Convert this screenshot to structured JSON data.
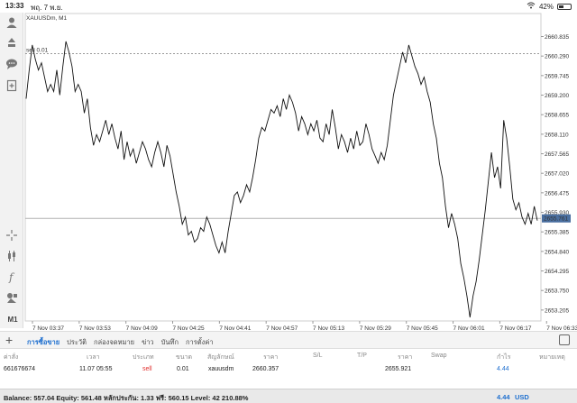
{
  "status_bar": {
    "time": "13:33",
    "date": "พฤ. 7 พ.ย.",
    "battery": "42%",
    "battery_level": 0.42
  },
  "chart": {
    "symbol_title": "XAUUSDm, M1",
    "sell_label": "sell 0.01",
    "current_price": "2655.761",
    "sell_level": 2660.357,
    "colors": {
      "line": "#111111",
      "grid": "#e6e6e6",
      "price_box": "#4a6fa0",
      "sell_line": "#999999"
    },
    "price_axis": [
      "2660.835",
      "2660.290",
      "2659.745",
      "2659.200",
      "2658.655",
      "2658.110",
      "2657.565",
      "2657.020",
      "2656.475",
      "2655.930",
      "2655.385",
      "2654.840",
      "2654.295",
      "2653.750",
      "2653.205"
    ],
    "time_axis": [
      "7 Nov 03:37",
      "7 Nov 03:53",
      "7 Nov 04:09",
      "7 Nov 04:25",
      "7 Nov 04:41",
      "7 Nov 04:57",
      "7 Nov 05:13",
      "7 Nov 05:29",
      "7 Nov 05:45",
      "7 Nov 06:01",
      "7 Nov 06:17",
      "7 Nov 06:33"
    ]
  },
  "chart_data": {
    "type": "line",
    "title": "XAUUSDm, M1",
    "ylim": [
      2652.9,
      2661.2
    ],
    "values": [
      2659.1,
      2659.9,
      2660.6,
      2660.2,
      2659.9,
      2660.1,
      2659.7,
      2659.3,
      2659.5,
      2659.3,
      2659.9,
      2659.2,
      2660.0,
      2660.7,
      2660.4,
      2660.0,
      2659.3,
      2659.5,
      2659.3,
      2658.7,
      2659.1,
      2658.3,
      2657.8,
      2658.1,
      2657.9,
      2658.2,
      2658.5,
      2658.1,
      2658.4,
      2658.0,
      2657.7,
      2658.2,
      2657.4,
      2657.9,
      2657.5,
      2657.7,
      2657.3,
      2657.6,
      2657.9,
      2657.7,
      2657.4,
      2657.2,
      2657.6,
      2657.9,
      2657.6,
      2657.2,
      2657.8,
      2657.5,
      2657.0,
      2656.5,
      2656.1,
      2655.6,
      2655.8,
      2655.3,
      2655.4,
      2655.1,
      2655.2,
      2655.5,
      2655.4,
      2655.8,
      2655.6,
      2655.3,
      2655.0,
      2654.8,
      2655.1,
      2654.8,
      2655.4,
      2655.9,
      2656.4,
      2656.5,
      2656.2,
      2656.4,
      2656.7,
      2656.5,
      2656.9,
      2657.4,
      2658.0,
      2658.3,
      2658.2,
      2658.5,
      2658.8,
      2658.7,
      2658.9,
      2658.6,
      2659.1,
      2658.8,
      2659.2,
      2659.0,
      2658.7,
      2658.2,
      2658.6,
      2658.4,
      2658.1,
      2658.4,
      2658.2,
      2658.5,
      2658.0,
      2657.9,
      2658.4,
      2658.1,
      2658.8,
      2658.3,
      2657.7,
      2658.1,
      2657.9,
      2657.6,
      2658.0,
      2657.7,
      2658.2,
      2657.8,
      2657.9,
      2658.4,
      2658.1,
      2657.7,
      2657.5,
      2657.3,
      2657.6,
      2657.4,
      2657.8,
      2658.5,
      2659.2,
      2659.6,
      2660.0,
      2660.4,
      2660.1,
      2660.6,
      2660.3,
      2660.0,
      2659.8,
      2659.5,
      2659.7,
      2659.3,
      2659.0,
      2658.4,
      2658.0,
      2657.3,
      2656.9,
      2656.1,
      2655.5,
      2655.9,
      2655.6,
      2655.2,
      2654.5,
      2654.1,
      2653.6,
      2653.0,
      2653.6,
      2654.0,
      2654.6,
      2655.3,
      2656.0,
      2656.8,
      2657.6,
      2656.9,
      2657.2,
      2656.6,
      2658.5,
      2658.0,
      2657.2,
      2656.3,
      2656.0,
      2656.2,
      2655.8,
      2655.6,
      2655.9,
      2655.6,
      2656.1,
      2655.7
    ]
  },
  "toolbar": {
    "timeframe": "M1"
  },
  "tabs": {
    "items": [
      "การซื้อขาย",
      "ประวัติ",
      "กล่องจดหมาย",
      "ข่าว",
      "บันทึก",
      "การตั้งค่า"
    ],
    "active": 0
  },
  "table": {
    "headers": {
      "ticket": "ค่าสั่ง",
      "time": "เวลา",
      "type": "ประเภท",
      "volume": "ขนาด",
      "symbol": "สัญลักษณ์",
      "price": "ราคา",
      "sl": "S/L",
      "tp": "T/P",
      "price2": "ราคา",
      "swap": "Swap",
      "profit": "กำไร",
      "comment": "หมายเหตุ"
    },
    "row": {
      "ticket": "661676674",
      "time": "11.07 05:55",
      "type": "sell",
      "volume": "0.01",
      "symbol": "xauusdm",
      "price": "2660.357",
      "price2": "2655.921",
      "profit": "4.44"
    }
  },
  "balance": {
    "text": "Balance: 557.04 Equity: 561.48 หลักประกัน: 1.33 ฟรี: 560.15 Level: 42 210.88%",
    "value": "4.44",
    "currency": "USD"
  }
}
